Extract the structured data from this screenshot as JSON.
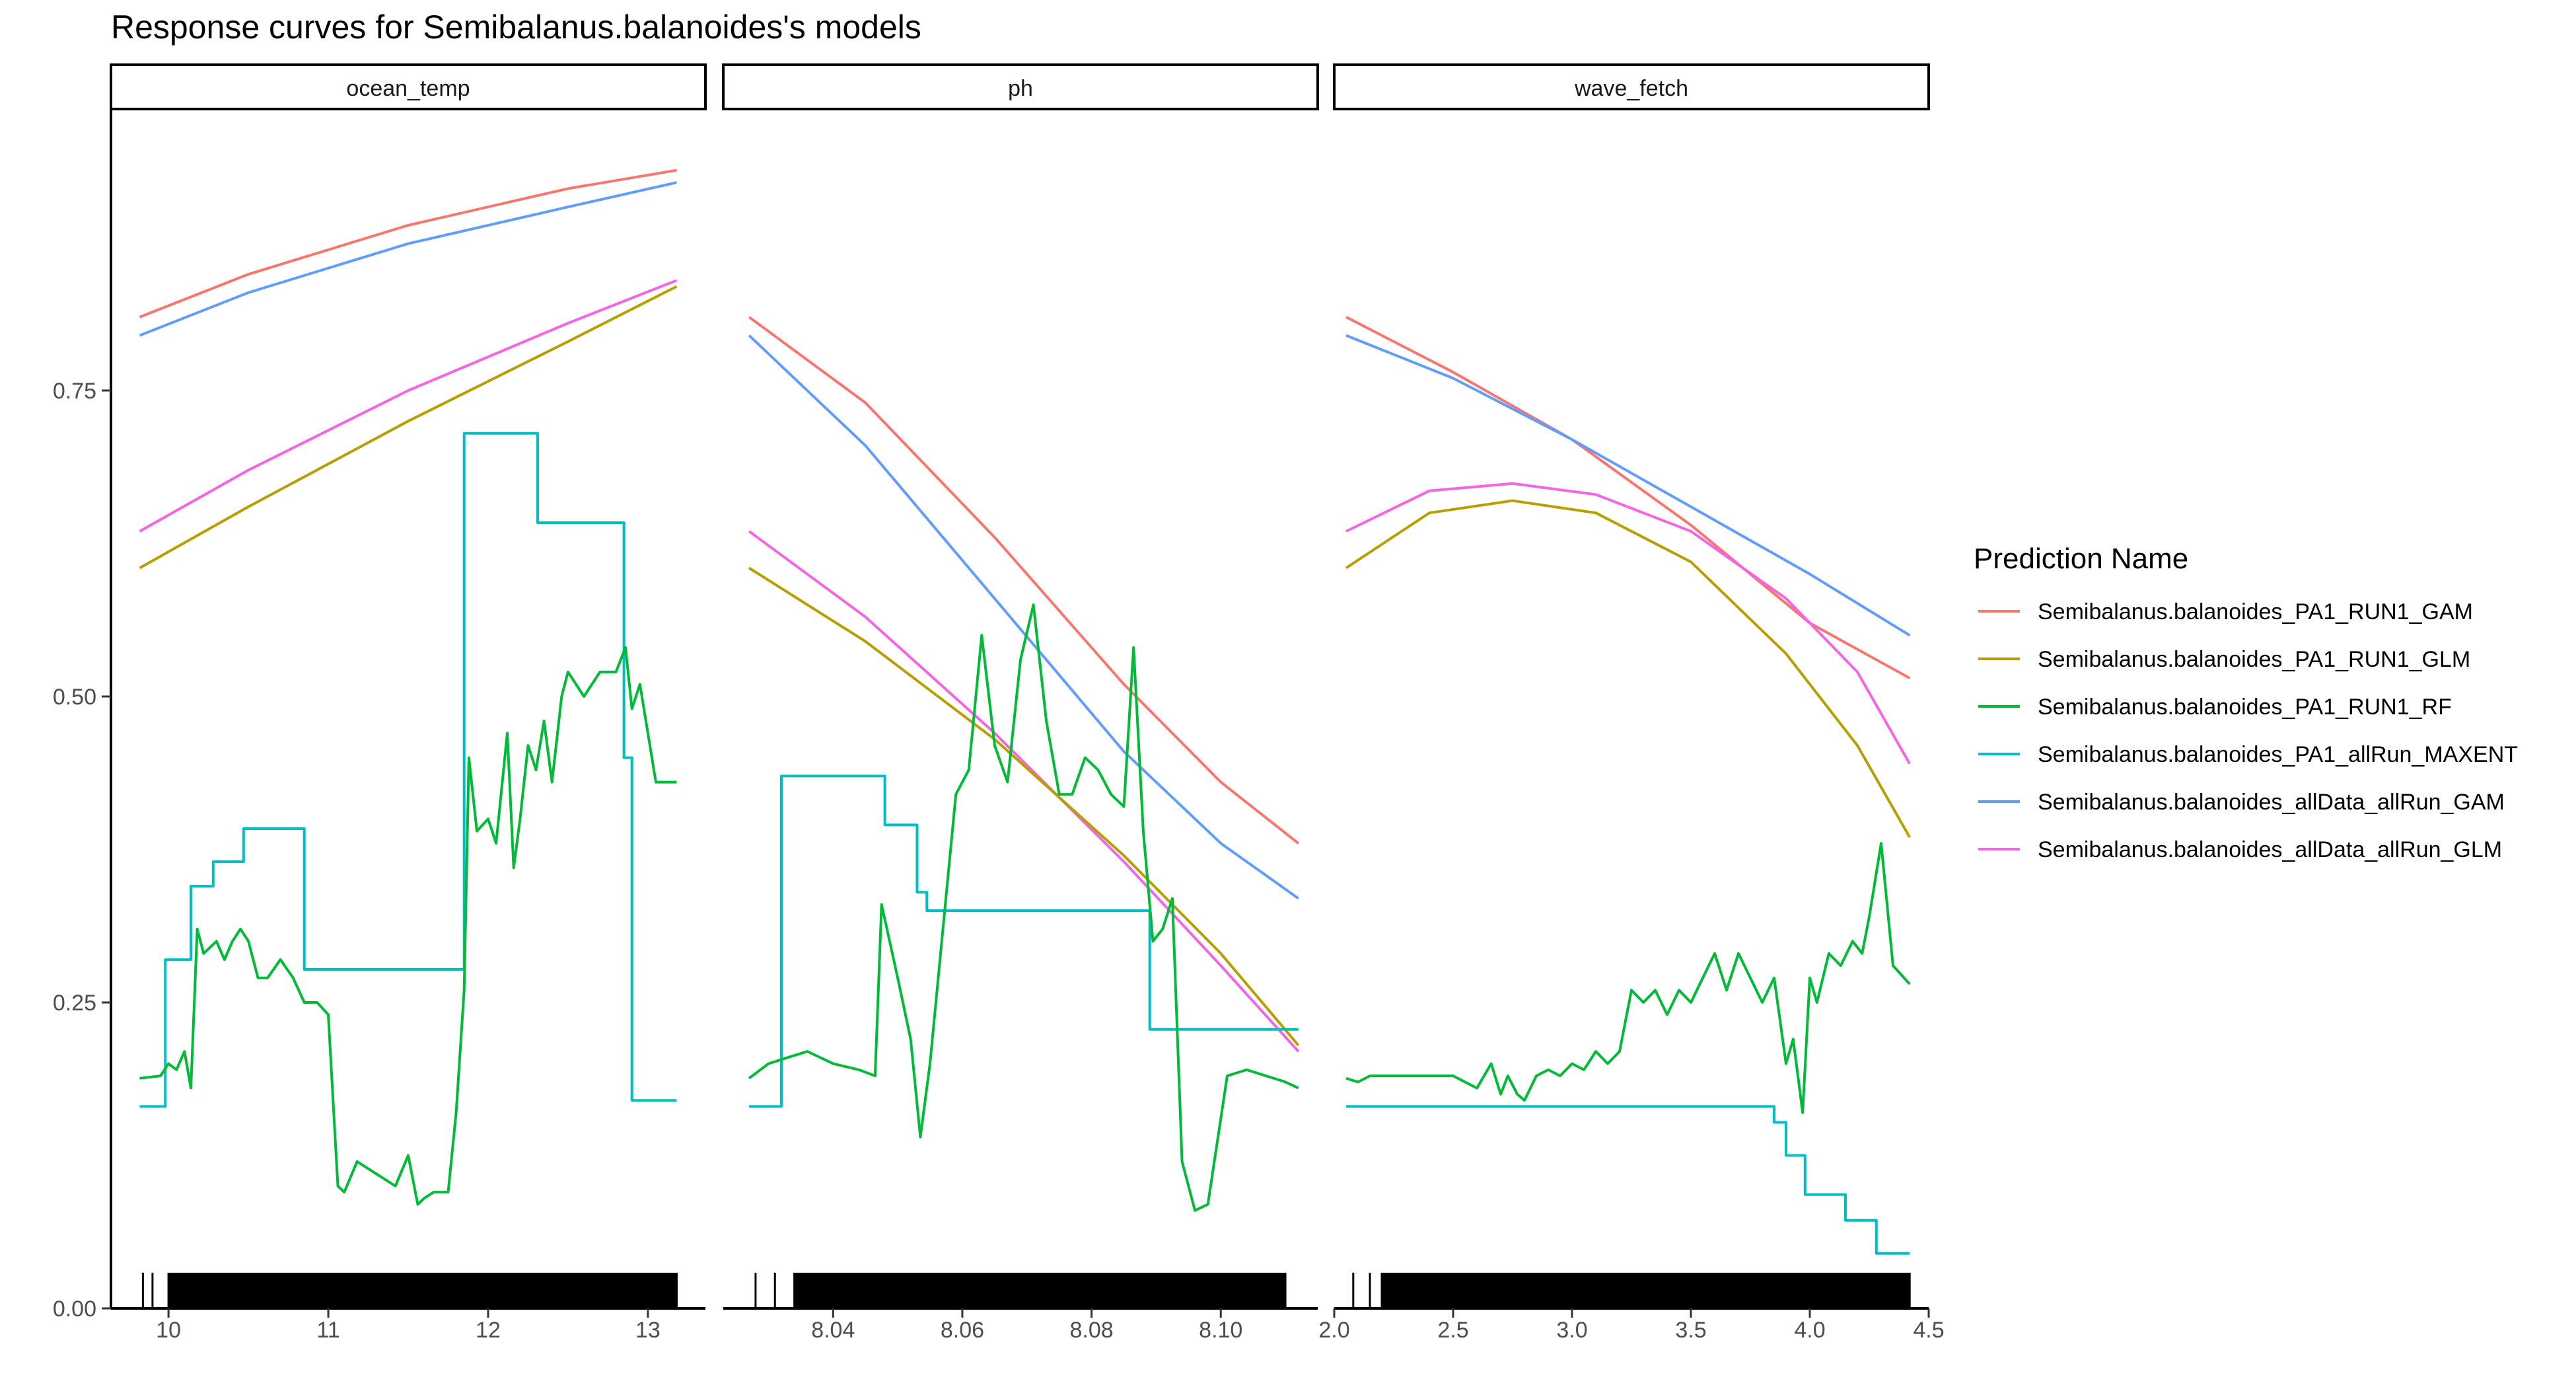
{
  "title": "Response curves for Semibalanus.balanoides's models",
  "legend": {
    "title": "Prediction Name",
    "placement": "right"
  },
  "colors": {
    "Semibalanus.balanoides_PA1_RUN1_GAM": "#F8766D",
    "Semibalanus.balanoides_PA1_RUN1_GLM": "#B79F00",
    "Semibalanus.balanoides_PA1_RUN1_RF": "#00BA38",
    "Semibalanus.balanoides_PA1_allRun_MAXENT": "#00BFC4",
    "Semibalanus.balanoides_allData_allRun_GAM": "#619CFF",
    "Semibalanus.balanoides_allData_allRun_GLM": "#F564E3"
  },
  "chart_data": {
    "type": "line",
    "title": "Response curves for Semibalanus.balanoides's models",
    "ylabel": "",
    "ylim": [
      0,
      0.98
    ],
    "y_ticks": [
      0.0,
      0.25,
      0.5,
      0.75
    ],
    "y_tick_labels": [
      "0.00",
      "0.25",
      "0.50",
      "0.75"
    ],
    "grid": false,
    "legend_entries": [
      "Semibalanus.balanoides_PA1_RUN1_GAM",
      "Semibalanus.balanoides_PA1_RUN1_GLM",
      "Semibalanus.balanoides_PA1_RUN1_RF",
      "Semibalanus.balanoides_PA1_allRun_MAXENT",
      "Semibalanus.balanoides_allData_allRun_GAM",
      "Semibalanus.balanoides_allData_allRun_GLM"
    ],
    "facets": [
      {
        "name": "ocean_temp",
        "xlim": [
          9.64,
          13.36
        ],
        "x_ticks": [
          10,
          11,
          12,
          13
        ],
        "x_tick_labels": [
          "10",
          "11",
          "12",
          "13"
        ],
        "series": [
          {
            "name": "Semibalanus.balanoides_PA1_RUN1_GAM",
            "x": [
              9.82,
              10.5,
              11.5,
              12.5,
              13.18
            ],
            "y": [
              0.81,
              0.845,
              0.885,
              0.915,
              0.93
            ]
          },
          {
            "name": "Semibalanus.balanoides_allData_allRun_GAM",
            "x": [
              9.82,
              10.5,
              11.5,
              12.5,
              13.18
            ],
            "y": [
              0.795,
              0.83,
              0.87,
              0.9,
              0.92
            ]
          },
          {
            "name": "Semibalanus.balanoides_allData_allRun_GLM",
            "x": [
              9.82,
              10.5,
              11.5,
              12.5,
              13.18
            ],
            "y": [
              0.635,
              0.685,
              0.75,
              0.805,
              0.84
            ]
          },
          {
            "name": "Semibalanus.balanoides_PA1_RUN1_GLM",
            "x": [
              9.82,
              10.5,
              11.5,
              12.5,
              13.18
            ],
            "y": [
              0.605,
              0.655,
              0.725,
              0.79,
              0.835
            ]
          },
          {
            "name": "Semibalanus.balanoides_PA1_allRun_MAXENT",
            "x": [
              9.82,
              9.98,
              9.98,
              10.14,
              10.14,
              10.28,
              10.28,
              10.47,
              10.47,
              10.85,
              10.85,
              11.85,
              11.85,
              12.31,
              12.31,
              12.85,
              12.85,
              12.9,
              12.9,
              13.18
            ],
            "y": [
              0.165,
              0.165,
              0.285,
              0.285,
              0.345,
              0.345,
              0.365,
              0.365,
              0.392,
              0.392,
              0.277,
              0.277,
              0.715,
              0.715,
              0.642,
              0.642,
              0.45,
              0.45,
              0.17,
              0.17
            ]
          },
          {
            "name": "Semibalanus.balanoides_PA1_RUN1_RF",
            "x": [
              9.82,
              9.95,
              10.0,
              10.05,
              10.1,
              10.14,
              10.18,
              10.22,
              10.3,
              10.35,
              10.4,
              10.45,
              10.5,
              10.56,
              10.62,
              10.7,
              10.78,
              10.85,
              10.93,
              11.0,
              11.06,
              11.1,
              11.18,
              11.3,
              11.42,
              11.5,
              11.56,
              11.6,
              11.66,
              11.75,
              11.8,
              11.85,
              11.88,
              11.93,
              12.0,
              12.05,
              12.12,
              12.16,
              12.2,
              12.25,
              12.3,
              12.35,
              12.4,
              12.46,
              12.5,
              12.6,
              12.7,
              12.8,
              12.86,
              12.9,
              12.95,
              13.0,
              13.05,
              13.18
            ],
            "y": [
              0.188,
              0.19,
              0.2,
              0.195,
              0.21,
              0.18,
              0.31,
              0.29,
              0.3,
              0.285,
              0.3,
              0.31,
              0.3,
              0.27,
              0.27,
              0.285,
              0.27,
              0.25,
              0.25,
              0.24,
              0.1,
              0.095,
              0.12,
              0.11,
              0.1,
              0.125,
              0.085,
              0.09,
              0.095,
              0.095,
              0.16,
              0.26,
              0.45,
              0.39,
              0.4,
              0.38,
              0.47,
              0.36,
              0.4,
              0.46,
              0.44,
              0.48,
              0.43,
              0.5,
              0.52,
              0.5,
              0.52,
              0.52,
              0.54,
              0.49,
              0.51,
              0.47,
              0.43,
              0.43
            ]
          }
        ],
        "rug": [
          9.84,
          9.9,
          10.0,
          10.1,
          10.2,
          10.3,
          10.4,
          10.5,
          10.6,
          10.7,
          10.8,
          10.9,
          11.0,
          11.1,
          11.2,
          11.3,
          11.4,
          11.5,
          11.6,
          11.7,
          11.8,
          11.9,
          11.95,
          12.05,
          12.1,
          12.2,
          12.3,
          12.4,
          12.5,
          12.6,
          12.7,
          12.75,
          12.8,
          12.85,
          12.9,
          12.95,
          13.0,
          13.05,
          13.1,
          13.18
        ]
      },
      {
        "name": "ph",
        "xlim": [
          8.023,
          8.115
        ],
        "x_ticks": [
          8.04,
          8.06,
          8.08,
          8.1
        ],
        "x_tick_labels": [
          "8.04",
          "8.06",
          "8.08",
          "8.10"
        ],
        "series": [
          {
            "name": "Semibalanus.balanoides_PA1_RUN1_GAM",
            "x": [
              8.027,
              8.045,
              8.065,
              8.085,
              8.1,
              8.112
            ],
            "y": [
              0.81,
              0.74,
              0.63,
              0.51,
              0.43,
              0.38
            ]
          },
          {
            "name": "Semibalanus.balanoides_allData_allRun_GAM",
            "x": [
              8.027,
              8.045,
              8.065,
              8.085,
              8.1,
              8.112
            ],
            "y": [
              0.795,
              0.705,
              0.58,
              0.455,
              0.38,
              0.335
            ]
          },
          {
            "name": "Semibalanus.balanoides_allData_allRun_GLM",
            "x": [
              8.027,
              8.045,
              8.065,
              8.085,
              8.1,
              8.112
            ],
            "y": [
              0.635,
              0.565,
              0.47,
              0.365,
              0.28,
              0.21
            ]
          },
          {
            "name": "Semibalanus.balanoides_PA1_RUN1_GLM",
            "x": [
              8.027,
              8.045,
              8.065,
              8.085,
              8.1,
              8.112
            ],
            "y": [
              0.605,
              0.545,
              0.465,
              0.37,
              0.29,
              0.215
            ]
          },
          {
            "name": "Semibalanus.balanoides_PA1_allRun_MAXENT",
            "x": [
              8.027,
              8.032,
              8.032,
              8.048,
              8.048,
              8.053,
              8.053,
              8.0545,
              8.0545,
              8.0605,
              8.0605,
              8.089,
              8.089,
              8.092,
              8.092,
              8.112
            ],
            "y": [
              0.165,
              0.165,
              0.435,
              0.435,
              0.395,
              0.395,
              0.34,
              0.34,
              0.325,
              0.325,
              0.325,
              0.325,
              0.228,
              0.228,
              0.228,
              0.228
            ]
          },
          {
            "name": "Semibalanus.balanoides_PA1_RUN1_RF",
            "x": [
              8.027,
              8.03,
              8.033,
              8.036,
              8.04,
              8.044,
              8.0465,
              8.0475,
              8.05,
              8.052,
              8.0535,
              8.055,
              8.057,
              8.059,
              8.061,
              8.063,
              8.065,
              8.067,
              8.069,
              8.071,
              8.073,
              8.075,
              8.077,
              8.079,
              8.081,
              8.083,
              8.085,
              8.0865,
              8.088,
              8.0895,
              8.091,
              8.0925,
              8.094,
              8.096,
              8.098,
              8.101,
              8.104,
              8.107,
              8.11,
              8.112
            ],
            "y": [
              0.188,
              0.2,
              0.205,
              0.21,
              0.2,
              0.195,
              0.19,
              0.33,
              0.27,
              0.22,
              0.14,
              0.2,
              0.31,
              0.42,
              0.44,
              0.55,
              0.46,
              0.43,
              0.53,
              0.575,
              0.48,
              0.42,
              0.42,
              0.45,
              0.44,
              0.42,
              0.41,
              0.54,
              0.39,
              0.3,
              0.31,
              0.335,
              0.12,
              0.08,
              0.085,
              0.19,
              0.195,
              0.19,
              0.185,
              0.18
            ]
          }
        ],
        "rug": [
          8.028,
          8.031,
          8.034,
          8.036,
          8.038,
          8.04,
          8.041,
          8.042,
          8.043,
          8.044,
          8.045,
          8.046,
          8.047,
          8.048,
          8.049,
          8.05,
          8.051,
          8.052,
          8.053,
          8.054,
          8.055,
          8.056,
          8.057,
          8.058,
          8.059,
          8.06,
          8.061,
          8.062,
          8.063,
          8.064,
          8.065,
          8.066,
          8.067,
          8.068,
          8.069,
          8.07,
          8.071,
          8.072,
          8.073,
          8.074,
          8.075,
          8.076,
          8.077,
          8.078,
          8.079,
          8.08,
          8.081,
          8.082,
          8.083,
          8.084,
          8.085,
          8.086,
          8.087,
          8.088,
          8.089,
          8.09,
          8.091,
          8.092,
          8.093,
          8.094,
          8.095,
          8.096,
          8.097,
          8.098,
          8.1,
          8.102,
          8.104,
          8.106,
          8.108,
          8.11
        ]
      },
      {
        "name": "wave_fetch",
        "xlim": [
          2.0,
          4.5
        ],
        "x_ticks": [
          2.0,
          2.5,
          3.0,
          3.5,
          4.0,
          4.5
        ],
        "x_tick_labels": [
          "2.0",
          "2.5",
          "3.0",
          "3.5",
          "4.0",
          "4.5"
        ],
        "series": [
          {
            "name": "Semibalanus.balanoides_PA1_RUN1_GAM",
            "x": [
              2.05,
              2.5,
              3.0,
              3.5,
              4.0,
              4.42
            ],
            "y": [
              0.81,
              0.765,
              0.71,
              0.64,
              0.56,
              0.515
            ]
          },
          {
            "name": "Semibalanus.balanoides_allData_allRun_GAM",
            "x": [
              2.05,
              2.5,
              3.0,
              3.5,
              4.0,
              4.42
            ],
            "y": [
              0.795,
              0.76,
              0.71,
              0.655,
              0.6,
              0.55
            ]
          },
          {
            "name": "Semibalanus.balanoides_allData_allRun_GLM",
            "x": [
              2.05,
              2.4,
              2.75,
              3.1,
              3.5,
              3.9,
              4.2,
              4.42
            ],
            "y": [
              0.635,
              0.668,
              0.674,
              0.665,
              0.635,
              0.58,
              0.52,
              0.445
            ]
          },
          {
            "name": "Semibalanus.balanoides_PA1_RUN1_GLM",
            "x": [
              2.05,
              2.4,
              2.75,
              3.1,
              3.5,
              3.9,
              4.2,
              4.42
            ],
            "y": [
              0.605,
              0.65,
              0.66,
              0.65,
              0.61,
              0.535,
              0.46,
              0.385
            ]
          },
          {
            "name": "Semibalanus.balanoides_PA1_allRun_MAXENT",
            "x": [
              2.05,
              3.85,
              3.85,
              3.9,
              3.9,
              3.98,
              3.98,
              4.15,
              4.15,
              4.28,
              4.28,
              4.42
            ],
            "y": [
              0.165,
              0.165,
              0.152,
              0.152,
              0.125,
              0.125,
              0.093,
              0.093,
              0.072,
              0.072,
              0.045,
              0.045
            ]
          },
          {
            "name": "Semibalanus.balanoides_PA1_RUN1_RF",
            "x": [
              2.05,
              2.1,
              2.15,
              2.3,
              2.5,
              2.6,
              2.66,
              2.7,
              2.73,
              2.77,
              2.8,
              2.85,
              2.9,
              2.95,
              3.0,
              3.05,
              3.1,
              3.15,
              3.2,
              3.25,
              3.3,
              3.35,
              3.4,
              3.45,
              3.5,
              3.55,
              3.6,
              3.65,
              3.7,
              3.75,
              3.8,
              3.85,
              3.9,
              3.93,
              3.97,
              4.0,
              4.03,
              4.08,
              4.13,
              4.18,
              4.22,
              4.25,
              4.3,
              4.35,
              4.42
            ],
            "y": [
              0.188,
              0.185,
              0.19,
              0.19,
              0.19,
              0.18,
              0.2,
              0.175,
              0.19,
              0.175,
              0.17,
              0.19,
              0.195,
              0.19,
              0.2,
              0.195,
              0.21,
              0.2,
              0.21,
              0.26,
              0.25,
              0.26,
              0.24,
              0.26,
              0.25,
              0.27,
              0.29,
              0.26,
              0.29,
              0.27,
              0.25,
              0.27,
              0.2,
              0.22,
              0.16,
              0.27,
              0.25,
              0.29,
              0.28,
              0.3,
              0.29,
              0.32,
              0.38,
              0.28,
              0.265
            ]
          }
        ],
        "rug": [
          2.08,
          2.15,
          2.2,
          2.25,
          2.3,
          2.35,
          2.42,
          2.48,
          2.55,
          2.6,
          2.63,
          2.66,
          2.7,
          2.74,
          2.78,
          2.82,
          2.86,
          2.9,
          2.95,
          3.0,
          3.05,
          3.1,
          3.15,
          3.2,
          3.25,
          3.3,
          3.35,
          3.4,
          3.45,
          3.5,
          3.55,
          3.6,
          3.65,
          3.7,
          3.75,
          3.8,
          3.85,
          3.9,
          3.95,
          4.0,
          4.05,
          4.1,
          4.15,
          4.2,
          4.25,
          4.3,
          4.35,
          4.42
        ]
      }
    ]
  }
}
